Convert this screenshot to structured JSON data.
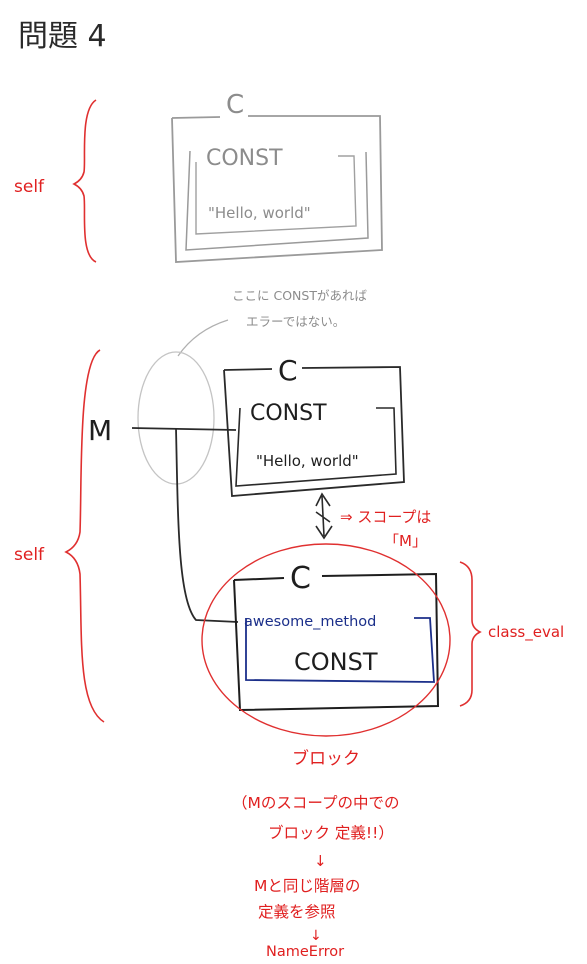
{
  "title": "問題 4",
  "top_block": {
    "self_label": "self",
    "class_name": "C",
    "const_label": "CONST",
    "value": "\"Hello, world\""
  },
  "grey_note": {
    "line1": "ここに CONSTがあれば",
    "line2": "エラーではない。"
  },
  "module_block": {
    "self_label": "self",
    "module_name": "M",
    "class_name": "C",
    "const_label": "CONST",
    "value": "\"Hello, world\"",
    "scope_note_line1": "⇒ スコープは",
    "scope_note_line2": "「M」"
  },
  "eval_block": {
    "class_name": "C",
    "method_name": "awesome_method",
    "const_ref": "CONST",
    "class_eval_label": "class_eval",
    "block_label": "ブロック"
  },
  "explanation": {
    "line1": "（Mのスコープの中での",
    "line2": "ブロック 定義!!）",
    "arrow1": "↓",
    "line3": "Mと同じ階層の",
    "line4": "定義を参照",
    "arrow2": "↓",
    "line5": "NameError"
  },
  "colors": {
    "ink": "#1e1e1e",
    "pencil_grey": "#8c8c8c",
    "red": "#e02020",
    "blue": "#1b2f8a"
  }
}
